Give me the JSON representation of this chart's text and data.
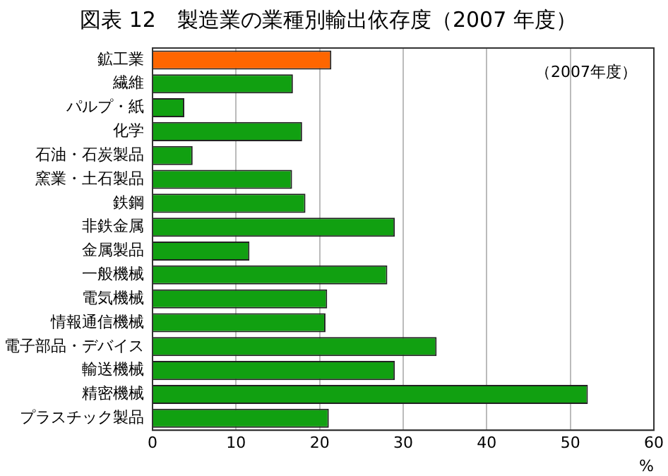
{
  "chart_data": {
    "type": "bar",
    "orientation": "horizontal",
    "title": "図表 12　製造業の業種別輸出依存度（2007 年度）",
    "xlabel": "%",
    "categories": [
      "鉱工業",
      "繊維",
      "パルプ・紙",
      "化学",
      "石油・石炭製品",
      "窯業・土石製品",
      "鉄鋼",
      "非鉄金属",
      "金属製品",
      "一般機械",
      "電気機械",
      "情報通信機械",
      "電子部品・デバイス",
      "輸送機械",
      "精密機械",
      "プラスチック製品"
    ],
    "values": [
      21.4,
      16.8,
      3.8,
      17.9,
      4.8,
      16.7,
      18.3,
      29.0,
      11.6,
      28.1,
      20.9,
      20.7,
      34.0,
      29.0,
      52.1,
      21.1
    ],
    "colors": [
      "#ff6600",
      "#11a011",
      "#11a011",
      "#11a011",
      "#11a011",
      "#11a011",
      "#11a011",
      "#11a011",
      "#11a011",
      "#11a011",
      "#11a011",
      "#11a011",
      "#11a011",
      "#11a011",
      "#11a011",
      "#11a011"
    ],
    "xlim": [
      0,
      60
    ],
    "xticks": [
      0,
      10,
      20,
      30,
      40,
      50,
      60
    ],
    "grid": "x",
    "legend": false,
    "annotations": [
      "（2007年度）"
    ]
  }
}
